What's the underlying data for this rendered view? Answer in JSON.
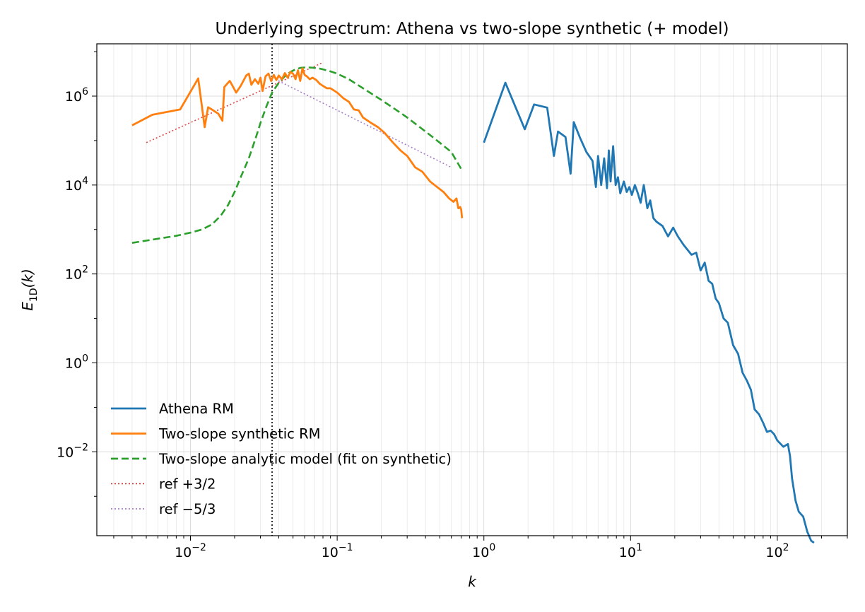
{
  "chart_data": {
    "type": "line",
    "title": "Underlying spectrum: Athena vs two-slope synthetic (+ model)",
    "xlabel": "k",
    "ylabel": "E_1D(k)",
    "xscale": "log",
    "yscale": "log",
    "xlim": [
      0.0023,
      300
    ],
    "ylim": [
      0.00013,
      15000000
    ],
    "x_ticks": [
      {
        "value": 0.01,
        "base": "10",
        "exp": "−2"
      },
      {
        "value": 0.1,
        "base": "10",
        "exp": "−1"
      },
      {
        "value": 1,
        "base": "10",
        "exp": "0"
      },
      {
        "value": 10,
        "base": "10",
        "exp": "1"
      },
      {
        "value": 100,
        "base": "10",
        "exp": "2"
      }
    ],
    "y_ticks": [
      {
        "value": 0.01,
        "base": "10",
        "exp": "−2"
      },
      {
        "value": 1,
        "base": "10",
        "exp": "0"
      },
      {
        "value": 100,
        "base": "10",
        "exp": "2"
      },
      {
        "value": 10000,
        "base": "10",
        "exp": "4"
      },
      {
        "value": 1000000,
        "base": "10",
        "exp": "6"
      }
    ],
    "grid": true,
    "legend_position": "lower-left",
    "vline": {
      "x": 0.036,
      "color": "#000000",
      "style": "dotted"
    },
    "series": [
      {
        "name": "Athena RM",
        "color": "#1f77b4",
        "style": "solid",
        "x": [
          1.0,
          1.4,
          1.9,
          2.2,
          2.7,
          3.0,
          3.2,
          3.6,
          3.9,
          4.1,
          4.5,
          5.0,
          5.5,
          5.8,
          6.0,
          6.3,
          6.6,
          6.9,
          7.1,
          7.3,
          7.6,
          7.9,
          8.2,
          8.5,
          9.0,
          9.4,
          9.8,
          10.2,
          10.7,
          11.2,
          11.7,
          12.3,
          13.0,
          13.6,
          14.3,
          15.0,
          16.5,
          18.0,
          19.5,
          21.0,
          23.0,
          26.0,
          28.0,
          30.0,
          32.0,
          34.0,
          36.0,
          38.0,
          40.0,
          43.0,
          46.0,
          50.0,
          54.0,
          58.0,
          62.0,
          66.0,
          70.0,
          75.0,
          80.0,
          85.0,
          90.0,
          95.0,
          100.0,
          110.0,
          118.0,
          122.0,
          126.0,
          133.0,
          140.0,
          150.0,
          160.0,
          170.0,
          178.0
        ],
        "y": [
          90000,
          2000000,
          180000,
          650000,
          550000,
          45000,
          160000,
          120000,
          18000,
          260000,
          120000,
          55000,
          35000,
          9000,
          45000,
          10000,
          40000,
          8500,
          60000,
          12000,
          75000,
          10000,
          15000,
          6500,
          12000,
          7000,
          9000,
          6000,
          10000,
          6500,
          4000,
          10000,
          3000,
          4500,
          1800,
          1500,
          1200,
          700,
          1100,
          700,
          450,
          270,
          300,
          120,
          180,
          70,
          60,
          28,
          22,
          10,
          8,
          2.5,
          1.6,
          0.6,
          0.4,
          0.25,
          0.09,
          0.07,
          0.045,
          0.028,
          0.03,
          0.025,
          0.018,
          0.013,
          0.015,
          0.008,
          0.0025,
          0.0008,
          0.00045,
          0.00035,
          0.00016,
          0.0001,
          9e-05
        ]
      },
      {
        "name": "Two-slope synthetic RM",
        "color": "#ff7f0e",
        "style": "solid",
        "x": [
          0.004,
          0.0055,
          0.0085,
          0.0113,
          0.0125,
          0.0132,
          0.014,
          0.0155,
          0.0165,
          0.017,
          0.0185,
          0.019,
          0.0205,
          0.022,
          0.024,
          0.025,
          0.026,
          0.0275,
          0.029,
          0.03,
          0.031,
          0.0325,
          0.034,
          0.0355,
          0.037,
          0.0385,
          0.04,
          0.042,
          0.044,
          0.046,
          0.048,
          0.05,
          0.052,
          0.054,
          0.056,
          0.058,
          0.06,
          0.062,
          0.065,
          0.068,
          0.072,
          0.076,
          0.08,
          0.085,
          0.09,
          0.1,
          0.11,
          0.12,
          0.13,
          0.14,
          0.15,
          0.17,
          0.19,
          0.21,
          0.24,
          0.27,
          0.3,
          0.34,
          0.38,
          0.43,
          0.48,
          0.53,
          0.58,
          0.62,
          0.65,
          0.67,
          0.69,
          0.7,
          0.71
        ],
        "y": [
          220000,
          380000,
          500000,
          2500000,
          200000,
          560000,
          500000,
          400000,
          280000,
          1600000,
          2200000,
          1900000,
          1200000,
          1700000,
          2900000,
          3200000,
          1800000,
          2400000,
          1900000,
          2600000,
          1300000,
          2800000,
          3200000,
          2200000,
          3000000,
          2300000,
          2900000,
          2400000,
          3300000,
          2600000,
          3500000,
          3200000,
          2400000,
          3800000,
          2200000,
          4200000,
          3000000,
          2800000,
          2400000,
          2600000,
          2300000,
          1900000,
          1700000,
          1500000,
          1500000,
          1200000,
          900000,
          750000,
          500000,
          480000,
          330000,
          250000,
          200000,
          150000,
          90000,
          60000,
          45000,
          25000,
          20000,
          12000,
          9000,
          7000,
          5000,
          4200,
          5000,
          3000,
          3200,
          2800,
          1800
        ]
      },
      {
        "name": "Two-slope analytic model (fit on synthetic)",
        "color": "#2ca02c",
        "style": "dashed",
        "x": [
          0.004,
          0.006,
          0.008,
          0.01,
          0.012,
          0.014,
          0.016,
          0.018,
          0.02,
          0.022,
          0.025,
          0.028,
          0.03,
          0.033,
          0.036,
          0.04,
          0.044,
          0.048,
          0.052,
          0.056,
          0.06,
          0.065,
          0.07,
          0.075,
          0.08,
          0.09,
          0.1,
          0.12,
          0.15,
          0.2,
          0.25,
          0.3,
          0.4,
          0.5,
          0.6,
          0.7
        ],
        "y": [
          500,
          620,
          720,
          850,
          1000,
          1300,
          2000,
          3500,
          7000,
          15000,
          40000,
          120000,
          250000,
          600000,
          1200000,
          2000000,
          2800000,
          3500000,
          4000000,
          4300000,
          4400000,
          4400000,
          4300000,
          4200000,
          4000000,
          3600000,
          3200000,
          2400000,
          1500000,
          820000,
          500000,
          330000,
          160000,
          90000,
          55000,
          23000
        ]
      },
      {
        "name": "ref +3/2",
        "color": "#d62728",
        "style": "dotted",
        "x": [
          0.005,
          0.08
        ],
        "y": [
          90000,
          5700000
        ]
      },
      {
        "name": "ref −5/3",
        "color": "#9467bd",
        "style": "dotted",
        "x": [
          0.036,
          0.6
        ],
        "y": [
          2600000,
          25000
        ]
      }
    ]
  }
}
